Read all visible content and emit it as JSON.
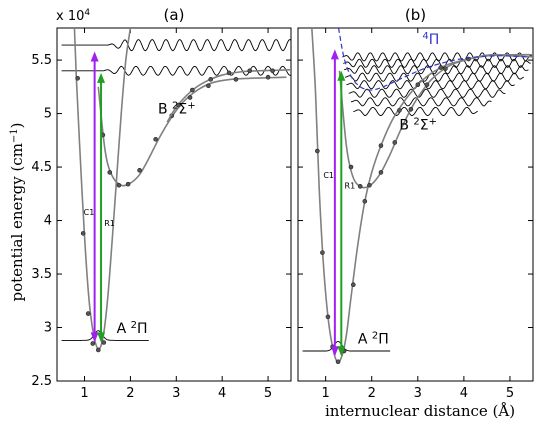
{
  "figure": {
    "y_axis_label": "potential energy (cm",
    "y_axis_unit_sup": "−1",
    "y_axis_label_close": ")",
    "x_axis_label": "internuclear distance (Å)",
    "multiplier_base": "x 10",
    "multiplier_exp": "4"
  },
  "colors": {
    "c1_arrow": "#a020f0",
    "r1_arrow": "#20a020",
    "curve": "#808080",
    "pi_state": "#3333cc",
    "wave": "#000000"
  },
  "chart_data": [
    {
      "type": "line",
      "panel_label": "(a)",
      "xlim": [
        0.4,
        5.5
      ],
      "ylim": [
        25000,
        58000
      ],
      "x_ticks": [
        1,
        2,
        3,
        4,
        5
      ],
      "y_ticks": [
        2.5,
        3,
        3.5,
        4,
        4.5,
        5,
        5.5
      ],
      "y_tick_scale": 10000,
      "state_labels": [
        {
          "name": "A ²Π",
          "main": "A ",
          "sup": "2",
          "sym": "Π",
          "x": 1.7,
          "y": 29500
        },
        {
          "name": "B ²Σ⁺",
          "main": "B ",
          "sup": "2",
          "sym": "Σ",
          "symsup": "+",
          "x": 2.6,
          "y": 50000
        }
      ],
      "series": [
        {
          "role": "A-state",
          "x": [
            0.78,
            0.82,
            0.9,
            1.0,
            1.1,
            1.2,
            1.3,
            1.4,
            1.5,
            1.6,
            1.7,
            1.8,
            1.9,
            2.0
          ],
          "y": [
            58000,
            53500,
            46500,
            38500,
            32500,
            29300,
            28000,
            29000,
            32500,
            38000,
            44000,
            50000,
            55000,
            58000
          ],
          "markers": [
            [
              0.85,
              53300
            ],
            [
              0.97,
              38800
            ],
            [
              1.08,
              31300
            ],
            [
              1.18,
              28500
            ],
            [
              1.3,
              27900
            ],
            [
              1.42,
              28600
            ]
          ]
        },
        {
          "role": "B-state-1",
          "x": [
            1.3,
            1.45,
            1.6,
            1.8,
            2.0,
            2.2,
            2.4,
            2.6,
            2.8,
            3.0,
            3.2,
            3.5,
            3.8,
            4.2,
            4.6,
            5.0,
            5.4
          ],
          "y": [
            52500,
            46500,
            44200,
            43300,
            43500,
            44300,
            45800,
            47500,
            49000,
            50300,
            51300,
            52300,
            52900,
            53200,
            53300,
            53350,
            53400
          ],
          "markers": [
            [
              1.4,
              48000
            ],
            [
              1.55,
              44500
            ],
            [
              1.75,
              43300
            ],
            [
              1.95,
              43400
            ],
            [
              2.2,
              44700
            ],
            [
              2.55,
              47600
            ],
            [
              2.9,
              49800
            ],
            [
              3.3,
              51500
            ],
            [
              3.7,
              52600
            ],
            [
              4.3,
              53200
            ],
            [
              5.0,
              53400
            ]
          ]
        },
        {
          "role": "B-state-2",
          "x": [
            2.8,
            3.0,
            3.3,
            3.6,
            4.0,
            4.4,
            4.8,
            5.2,
            5.5
          ],
          "y": [
            49200,
            50600,
            52000,
            52900,
            53600,
            53900,
            54000,
            54050,
            54100
          ],
          "markers": [
            [
              3.05,
              50800
            ],
            [
              3.35,
              52200
            ],
            [
              3.75,
              53200
            ],
            [
              4.15,
              53800
            ],
            [
              4.6,
              54000
            ],
            [
              5.1,
              54000
            ]
          ]
        }
      ],
      "wavefunctions": [
        {
          "level": 28800,
          "x_start": 0.5,
          "x_end": 2.4,
          "kind": "ground",
          "center": 1.3,
          "amp": 900,
          "width": 0.12
        },
        {
          "level": 54000,
          "x_start": 0.5,
          "x_end": 5.5,
          "kind": "continuum",
          "start_osc": 1.4,
          "amp": 420,
          "period": 0.32
        },
        {
          "level": 56400,
          "x_start": 0.5,
          "x_end": 5.5,
          "kind": "continuum",
          "start_osc": 1.5,
          "amp": 520,
          "period": 0.3
        }
      ],
      "transitions": [
        {
          "label": "C1",
          "x": 1.22,
          "y_start": 28800,
          "y_end": 55800,
          "color_key": "c1_arrow",
          "label_x": 0.98,
          "label_y": 40500
        },
        {
          "label": "R1",
          "x": 1.36,
          "y_start": 28800,
          "y_end": 53800,
          "color_key": "r1_arrow",
          "label_x": 1.43,
          "label_y": 39500
        }
      ]
    },
    {
      "type": "line",
      "panel_label": "(b)",
      "xlim": [
        0.4,
        5.5
      ],
      "ylim": [
        25000,
        58000
      ],
      "x_ticks": [
        1,
        2,
        3,
        4,
        5
      ],
      "state_labels": [
        {
          "name": "A ²Π",
          "main": "A ",
          "sup": "2",
          "sym": "Π",
          "x": 1.7,
          "y": 28500
        },
        {
          "name": "B ²Σ⁺",
          "main": "B ",
          "sup": "2",
          "sym": "Σ",
          "symsup": "+",
          "x": 2.6,
          "y": 48500
        }
      ],
      "pi_label": {
        "sup": "4",
        "sym": "Π",
        "x": 3.1,
        "y": 56500
      },
      "series": [
        {
          "role": "A-state",
          "x": [
            0.7,
            0.78,
            0.86,
            0.95,
            1.05,
            1.15,
            1.25,
            1.35,
            1.45,
            1.55,
            1.7,
            1.85,
            2.0,
            2.2,
            2.5,
            3.0,
            3.5,
            4.0,
            4.5,
            5.0,
            5.5
          ],
          "y": [
            58000,
            52000,
            43000,
            36000,
            31000,
            28200,
            26800,
            27300,
            29300,
            32800,
            37800,
            41800,
            44500,
            47000,
            49800,
            52700,
            54300,
            55000,
            55400,
            55500,
            55500
          ],
          "markers": [
            [
              0.82,
              46500
            ],
            [
              0.93,
              37000
            ],
            [
              1.05,
              31000
            ],
            [
              1.15,
              28200
            ],
            [
              1.27,
              26800
            ],
            [
              1.4,
              27800
            ],
            [
              1.6,
              34000
            ],
            [
              1.85,
              41800
            ],
            [
              2.2,
              47000
            ],
            [
              2.6,
              50300
            ],
            [
              3.0,
              52700
            ],
            [
              3.5,
              54300
            ]
          ]
        },
        {
          "role": "B-state",
          "x": [
            1.3,
            1.45,
            1.6,
            1.8,
            2.0,
            2.2,
            2.4,
            2.6,
            2.8,
            3.0,
            3.3,
            3.7,
            4.2,
            4.6,
            5.0,
            5.5
          ],
          "y": [
            54000,
            47000,
            44000,
            43100,
            43400,
            44500,
            46200,
            48200,
            50000,
            51500,
            53200,
            54500,
            55200,
            55500,
            55400,
            55300
          ],
          "markers": [
            [
              1.55,
              45000
            ],
            [
              1.75,
              43200
            ],
            [
              1.95,
              43300
            ],
            [
              2.2,
              44500
            ],
            [
              2.5,
              47300
            ],
            [
              2.85,
              50400
            ],
            [
              3.2,
              52700
            ],
            [
              3.6,
              54200
            ],
            [
              4.1,
              55100
            ]
          ]
        },
        {
          "role": "4Pi-state",
          "dashed": true,
          "x": [
            1.28,
            1.4,
            1.55,
            1.75,
            2.0,
            2.3,
            2.7,
            3.2,
            3.8,
            4.3,
            4.8,
            5.4
          ],
          "y": [
            58000,
            55200,
            53500,
            52500,
            52200,
            52600,
            53400,
            54300,
            55000,
            55300,
            55400,
            55300
          ]
        }
      ],
      "wavefunctions": [
        {
          "level": 27800,
          "x_start": 0.5,
          "x_end": 2.4,
          "kind": "ground",
          "center": 1.27,
          "amp": 900,
          "width": 0.12
        },
        {
          "level": 50200,
          "x_start": 1.6,
          "x_end": 4.3,
          "kind": "bound",
          "amp": 380,
          "period": 0.34
        },
        {
          "level": 51100,
          "x_start": 1.55,
          "x_end": 4.6,
          "kind": "bound",
          "amp": 380,
          "period": 0.33
        },
        {
          "level": 51900,
          "x_start": 1.5,
          "x_end": 4.9,
          "kind": "bound",
          "amp": 380,
          "period": 0.32
        },
        {
          "level": 52700,
          "x_start": 1.45,
          "x_end": 5.1,
          "kind": "bound",
          "amp": 380,
          "period": 0.31
        },
        {
          "level": 53400,
          "x_start": 1.42,
          "x_end": 5.3,
          "kind": "bound",
          "amp": 380,
          "period": 0.3
        },
        {
          "level": 54100,
          "x_start": 1.4,
          "x_end": 5.4,
          "kind": "bound",
          "amp": 380,
          "period": 0.29
        },
        {
          "level": 54700,
          "x_start": 1.38,
          "x_end": 5.45,
          "kind": "bound",
          "amp": 380,
          "period": 0.28
        },
        {
          "level": 55300,
          "x_start": 1.36,
          "x_end": 5.5,
          "kind": "bound",
          "amp": 380,
          "period": 0.27
        }
      ],
      "transitions": [
        {
          "label": "C1",
          "x": 1.2,
          "y_start": 27500,
          "y_end": 56000,
          "color_key": "c1_arrow",
          "label_x": 0.95,
          "label_y": 44000
        },
        {
          "label": "R1",
          "x": 1.34,
          "y_start": 27500,
          "y_end": 54000,
          "color_key": "r1_arrow",
          "label_x": 1.41,
          "label_y": 43000
        }
      ]
    }
  ]
}
